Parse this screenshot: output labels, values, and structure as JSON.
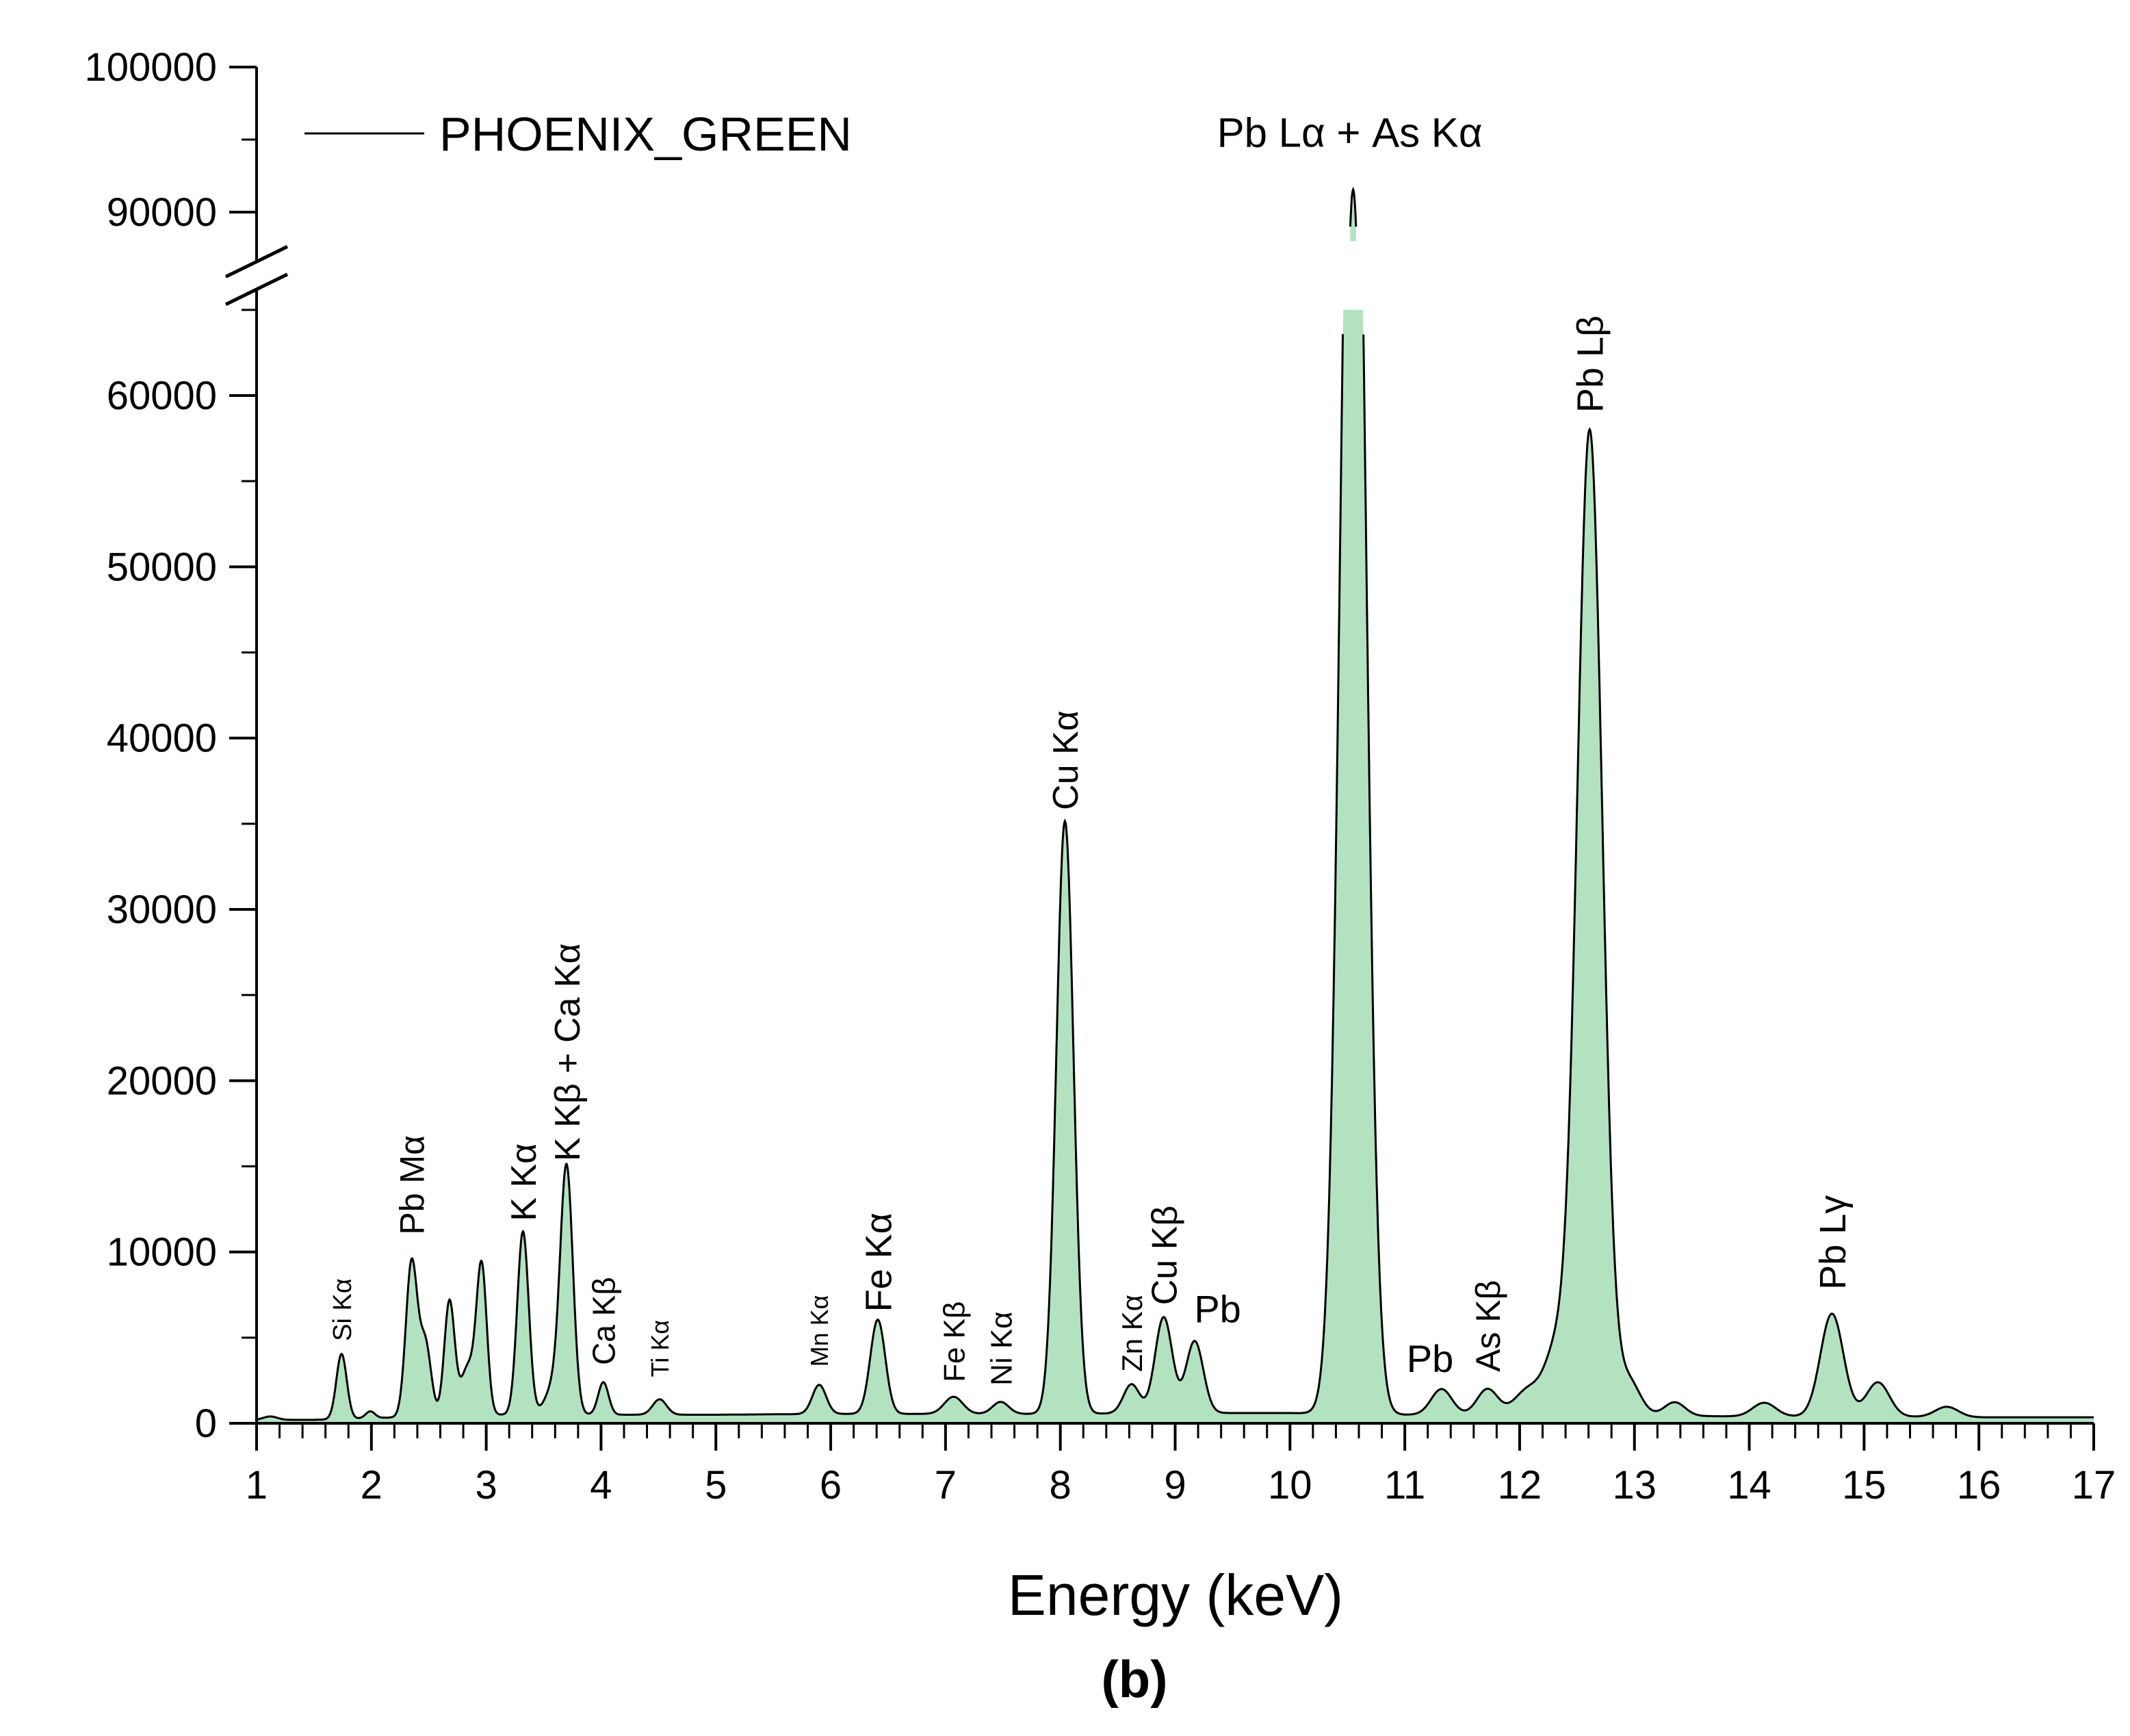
{
  "chart_data": {
    "type": "area",
    "xlabel": "Energy (keV)",
    "ylabel": "",
    "panel_label": "(b)",
    "xlim": [
      1,
      17
    ],
    "ylim": [
      0,
      100000
    ],
    "y_axis_break": [
      65000,
      88000
    ],
    "x_ticks": [
      "1",
      "2",
      "3",
      "4",
      "5",
      "6",
      "7",
      "8",
      "9",
      "10",
      "11",
      "12",
      "13",
      "14",
      "15",
      "16",
      "17"
    ],
    "y_ticks": [
      "0",
      "10000",
      "20000",
      "30000",
      "40000",
      "50000",
      "60000",
      "90000",
      "100000"
    ],
    "legend": {
      "label": "PHOENIX_GREEN",
      "position": "top-left"
    },
    "fill_color": "#b3e2c1",
    "line_color": "#000000",
    "series": [
      {
        "name": "PHOENIX_GREEN",
        "peaks": [
          {
            "x": 1.12,
            "y": 200,
            "w": 0.06
          },
          {
            "x": 1.74,
            "y": 3800,
            "w": 0.045
          },
          {
            "x": 1.99,
            "y": 400,
            "w": 0.04
          },
          {
            "x": 2.35,
            "y": 9000,
            "w": 0.05
          },
          {
            "x": 2.47,
            "y": 4200,
            "w": 0.05
          },
          {
            "x": 2.68,
            "y": 6700,
            "w": 0.045
          },
          {
            "x": 2.84,
            "y": 2800,
            "w": 0.06
          },
          {
            "x": 2.96,
            "y": 8600,
            "w": 0.045
          },
          {
            "x": 3.32,
            "y": 10700,
            "w": 0.05
          },
          {
            "x": 3.58,
            "y": 1500,
            "w": 0.07
          },
          {
            "x": 3.7,
            "y": 14300,
            "w": 0.055
          },
          {
            "x": 4.02,
            "y": 1900,
            "w": 0.045
          },
          {
            "x": 4.51,
            "y": 900,
            "w": 0.06
          },
          {
            "x": 5.9,
            "y": 1700,
            "w": 0.06
          },
          {
            "x": 6.41,
            "y": 5500,
            "w": 0.065
          },
          {
            "x": 7.07,
            "y": 1000,
            "w": 0.08
          },
          {
            "x": 7.48,
            "y": 700,
            "w": 0.07
          },
          {
            "x": 8.04,
            "y": 34600,
            "w": 0.075
          },
          {
            "x": 8.62,
            "y": 1700,
            "w": 0.07
          },
          {
            "x": 8.9,
            "y": 5600,
            "w": 0.075
          },
          {
            "x": 9.17,
            "y": 4200,
            "w": 0.075
          },
          {
            "x": 10.55,
            "y": 91000,
            "w": 0.105
          },
          {
            "x": 11.32,
            "y": 1500,
            "w": 0.09
          },
          {
            "x": 11.72,
            "y": 1500,
            "w": 0.09
          },
          {
            "x": 12.08,
            "y": 1500,
            "w": 0.12
          },
          {
            "x": 12.32,
            "y": 3500,
            "w": 0.1
          },
          {
            "x": 12.61,
            "y": 57500,
            "w": 0.11
          },
          {
            "x": 12.95,
            "y": 2000,
            "w": 0.1
          },
          {
            "x": 13.35,
            "y": 800,
            "w": 0.09
          },
          {
            "x": 14.13,
            "y": 800,
            "w": 0.1
          },
          {
            "x": 14.72,
            "y": 6000,
            "w": 0.1
          },
          {
            "x": 15.12,
            "y": 2000,
            "w": 0.1
          },
          {
            "x": 15.72,
            "y": 600,
            "w": 0.1
          }
        ],
        "baseline": [
          [
            1.0,
            200
          ],
          [
            1.5,
            200
          ],
          [
            2.0,
            300
          ],
          [
            3.0,
            500
          ],
          [
            4.0,
            500
          ],
          [
            5.0,
            500
          ],
          [
            6.0,
            550
          ],
          [
            7.0,
            550
          ],
          [
            8.0,
            550
          ],
          [
            9.0,
            600
          ],
          [
            10.0,
            600
          ],
          [
            11.0,
            500
          ],
          [
            12.0,
            500
          ],
          [
            13.0,
            450
          ],
          [
            14.0,
            400
          ],
          [
            15.0,
            400
          ],
          [
            16.0,
            350
          ],
          [
            17.0,
            350
          ]
        ]
      }
    ],
    "annotations": [
      {
        "id": "si-ka",
        "text": "Si Kα",
        "x": 1.74,
        "y_anchor": 4800,
        "rotate": true,
        "size": 38
      },
      {
        "id": "pb-ma",
        "text": "Pb Mα",
        "x": 2.35,
        "y_anchor": 11000,
        "rotate": true,
        "size": 50
      },
      {
        "id": "k-ka",
        "text": "K Kα",
        "x": 3.32,
        "y_anchor": 11800,
        "rotate": true,
        "size": 52
      },
      {
        "id": "k-kb-ca-ka",
        "text": "K Kβ + Ca Kα",
        "x": 3.7,
        "y_anchor": 15300,
        "rotate": true,
        "size": 52
      },
      {
        "id": "ca-kb",
        "text": "Ca Kβ",
        "x": 4.02,
        "y_anchor": 3400,
        "rotate": true,
        "size": 46
      },
      {
        "id": "ti-ka",
        "text": "Ti Kα",
        "x": 4.51,
        "y_anchor": 2700,
        "rotate": true,
        "size": 36
      },
      {
        "id": "mn-ka",
        "text": "Mn Kα",
        "x": 5.9,
        "y_anchor": 3300,
        "rotate": true,
        "size": 36
      },
      {
        "id": "fe-ka",
        "text": "Fe Kα",
        "x": 6.41,
        "y_anchor": 6500,
        "rotate": true,
        "size": 54
      },
      {
        "id": "fe-kb",
        "text": "Fe Kβ",
        "x": 7.07,
        "y_anchor": 2400,
        "rotate": true,
        "size": 44
      },
      {
        "id": "ni-ka",
        "text": "Ni Kα",
        "x": 7.48,
        "y_anchor": 2200,
        "rotate": true,
        "size": 44
      },
      {
        "id": "cu-ka",
        "text": "Cu Kα",
        "x": 8.04,
        "y_anchor": 35800,
        "rotate": true,
        "size": 52
      },
      {
        "id": "zn-ka",
        "text": "Zn Kα",
        "x": 8.62,
        "y_anchor": 3000,
        "rotate": true,
        "size": 42
      },
      {
        "id": "cu-kb",
        "text": "Cu Kβ",
        "x": 8.9,
        "y_anchor": 6900,
        "rotate": true,
        "size": 52
      },
      {
        "id": "pb-1",
        "text": "Pb",
        "x": 9.37,
        "y_anchor": 5900,
        "rotate": false,
        "size": 56
      },
      {
        "id": "pb-la-as-ka",
        "text": "Pb Lα + As Kα",
        "x": 10.52,
        "y_anchor": 94500,
        "rotate": false,
        "size": 60
      },
      {
        "id": "pb-2",
        "text": "Pb",
        "x": 11.22,
        "y_anchor": 3000,
        "rotate": false,
        "size": 56
      },
      {
        "id": "as-kb",
        "text": "As Kβ",
        "x": 11.72,
        "y_anchor": 3000,
        "rotate": true,
        "size": 50
      },
      {
        "id": "pb-lb",
        "text": "Pb Lβ",
        "x": 12.61,
        "y_anchor": 59000,
        "rotate": true,
        "size": 54
      },
      {
        "id": "pb-lg",
        "text": "Pb Lγ",
        "x": 14.72,
        "y_anchor": 7800,
        "rotate": true,
        "size": 54
      }
    ]
  }
}
